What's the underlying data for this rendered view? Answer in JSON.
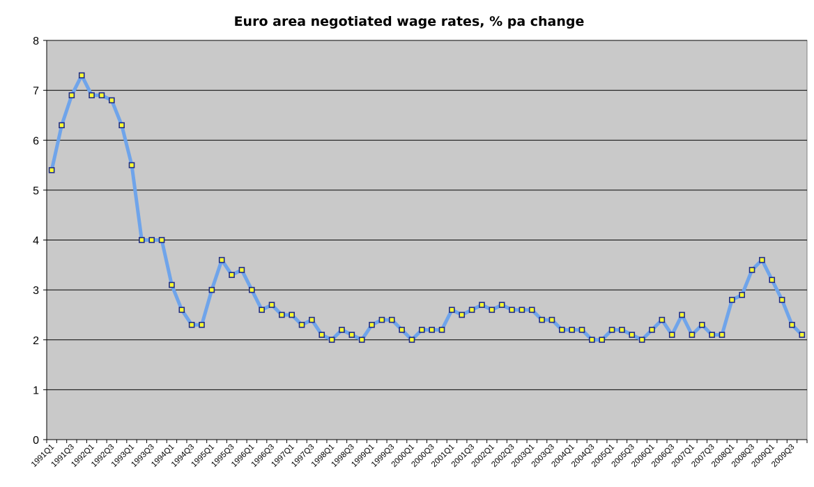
{
  "chart_data": {
    "type": "line",
    "title": "Euro area negotiated wage rates, % pa change",
    "xlabel": "",
    "ylabel": "",
    "ylim": [
      0,
      8
    ],
    "yticks": [
      0,
      1,
      2,
      3,
      4,
      5,
      6,
      7,
      8
    ],
    "grid": true,
    "legend": "none",
    "colors": {
      "plot_background": "#c9c9c9",
      "gridline": "#000000",
      "line": "#6fa4ea",
      "marker_fill": "#ffff33",
      "marker_edge": "#1c2a8a"
    },
    "x_tick_labels": [
      "1991Q1",
      "1991Q3",
      "1992Q1",
      "1992Q3",
      "1993Q1",
      "1993Q3",
      "1994Q1",
      "1994Q3",
      "1995Q1",
      "1995Q3",
      "1996Q1",
      "1996Q3",
      "1997Q1",
      "1997Q3",
      "1998Q1",
      "1998Q3",
      "1999Q1",
      "1999Q3",
      "2000Q1",
      "2000Q3",
      "2001Q1",
      "2001Q3",
      "2002Q1",
      "2002Q3",
      "2003Q1",
      "2003Q3",
      "2004Q1",
      "2004Q3",
      "2005Q1",
      "2005Q3",
      "2006Q1",
      "2006Q3",
      "2007Q1",
      "2007Q3",
      "2008Q1",
      "2008Q3",
      "2009Q1",
      "2009Q3"
    ],
    "categories": [
      "1991Q1",
      "1991Q2",
      "1991Q3",
      "1991Q4",
      "1992Q1",
      "1992Q2",
      "1992Q3",
      "1992Q4",
      "1993Q1",
      "1993Q2",
      "1993Q3",
      "1993Q4",
      "1994Q1",
      "1994Q2",
      "1994Q3",
      "1994Q4",
      "1995Q1",
      "1995Q2",
      "1995Q3",
      "1995Q4",
      "1996Q1",
      "1996Q2",
      "1996Q3",
      "1996Q4",
      "1997Q1",
      "1997Q2",
      "1997Q3",
      "1997Q4",
      "1998Q1",
      "1998Q2",
      "1998Q3",
      "1998Q4",
      "1999Q1",
      "1999Q2",
      "1999Q3",
      "1999Q4",
      "2000Q1",
      "2000Q2",
      "2000Q3",
      "2000Q4",
      "2001Q1",
      "2001Q2",
      "2001Q3",
      "2001Q4",
      "2002Q1",
      "2002Q2",
      "2002Q3",
      "2002Q4",
      "2003Q1",
      "2003Q2",
      "2003Q3",
      "2003Q4",
      "2004Q1",
      "2004Q2",
      "2004Q3",
      "2004Q4",
      "2005Q1",
      "2005Q2",
      "2005Q3",
      "2005Q4",
      "2006Q1",
      "2006Q2",
      "2006Q3",
      "2006Q4",
      "2007Q1",
      "2007Q2",
      "2007Q3",
      "2007Q4",
      "2008Q1",
      "2008Q2",
      "2008Q3",
      "2008Q4",
      "2009Q1",
      "2009Q2",
      "2009Q3",
      "2009Q4"
    ],
    "values": [
      5.4,
      6.3,
      6.9,
      7.3,
      6.9,
      6.9,
      6.8,
      6.3,
      5.5,
      4.0,
      4.0,
      4.0,
      3.1,
      2.6,
      2.3,
      2.3,
      3.0,
      3.6,
      3.3,
      3.4,
      3.0,
      2.6,
      2.7,
      2.5,
      2.5,
      2.3,
      2.4,
      2.1,
      2.0,
      2.2,
      2.1,
      2.0,
      2.3,
      2.4,
      2.4,
      2.2,
      2.0,
      2.2,
      2.2,
      2.2,
      2.6,
      2.5,
      2.6,
      2.7,
      2.6,
      2.7,
      2.6,
      2.6,
      2.6,
      2.4,
      2.4,
      2.2,
      2.2,
      2.2,
      2.0,
      2.0,
      2.2,
      2.2,
      2.1,
      2.0,
      2.2,
      2.4,
      2.1,
      2.5,
      2.1,
      2.3,
      2.1,
      2.1,
      2.8,
      2.9,
      3.4,
      3.6,
      3.2,
      2.8,
      2.3,
      2.1
    ]
  }
}
